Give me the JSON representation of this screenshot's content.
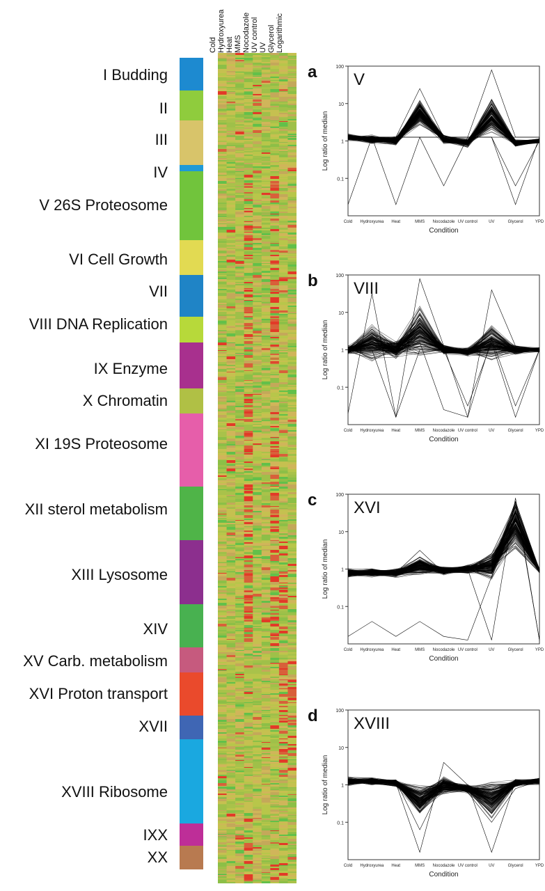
{
  "conditions": [
    "Cold",
    "Hydroxyurea",
    "Heat",
    "MMS",
    "Nocodazole",
    "UV control",
    "UV",
    "Glycerol",
    "Logarithmic"
  ],
  "clusters": [
    {
      "label": "I Budding",
      "color": "#1d8ad0"
    },
    {
      "label": "II",
      "color": "#8fcc3d"
    },
    {
      "label": "III",
      "color": "#d8c46a"
    },
    {
      "label": "IV",
      "color": "#1f9ad6"
    },
    {
      "label": "V 26S Proteosome",
      "color": "#71c43c"
    },
    {
      "label": "VI Cell Growth",
      "color": "#e2da52"
    },
    {
      "label": "VII",
      "color": "#1f84c6"
    },
    {
      "label": "VIII DNA Replication",
      "color": "#b7d93a"
    },
    {
      "label": "IX Enzyme",
      "color": "#a8308e"
    },
    {
      "label": "X Chromatin",
      "color": "#b0c045"
    },
    {
      "label": "XI 19S Proteosome",
      "color": "#e65eaa"
    },
    {
      "label": "XII sterol metabolism",
      "color": "#4fb448"
    },
    {
      "label": "XIII Lysosome",
      "color": "#8c2f8e"
    },
    {
      "label": "XIV",
      "color": "#48b150"
    },
    {
      "label": "XV Carb. metabolism",
      "color": "#c65a7e"
    },
    {
      "label": "XVI Proton transport",
      "color": "#ea4a2c"
    },
    {
      "label": "XVII",
      "color": "#3f66b4"
    },
    {
      "label": "XVIII Ribosome",
      "color": "#1aa8e0"
    },
    {
      "label": "IXX",
      "color": "#be2e98"
    },
    {
      "label": "XX",
      "color": "#b87a50"
    }
  ],
  "panels": [
    {
      "letter": "a",
      "cluster": "V",
      "ylabel": "Log ratio of median",
      "xlabel": "Condition",
      "x_ticks": [
        "Cold",
        "Hydroxyurea",
        "Heat",
        "MMS",
        "Nocodazole",
        "UV control",
        "UV",
        "Glycerol",
        "YPD"
      ],
      "y_ticks": [
        "100",
        "10",
        "1",
        "0.1"
      ]
    },
    {
      "letter": "b",
      "cluster": "VIII",
      "ylabel": "Log ratio of median",
      "xlabel": "Condition",
      "x_ticks": [
        "Cold",
        "Hydroxyurea",
        "Heat",
        "MMS",
        "Nocodazole",
        "UV control",
        "UV",
        "Glycerol",
        "YPD"
      ],
      "y_ticks": [
        "100",
        "10",
        "1",
        "0.1"
      ]
    },
    {
      "letter": "c",
      "cluster": "XVI",
      "ylabel": "Log ratio of median",
      "xlabel": "Condition",
      "x_ticks": [
        "Cold",
        "Hydroxyurea",
        "Heat",
        "MMS",
        "Nocodazole",
        "UV control",
        "UV",
        "Glycerol",
        "YPD"
      ],
      "y_ticks": [
        "100",
        "10",
        "1",
        "0.1"
      ]
    },
    {
      "letter": "d",
      "cluster": "XVIII",
      "ylabel": "Log ratio of median",
      "xlabel": "Condition",
      "x_ticks": [
        "Cold",
        "Hydroxyurea",
        "Heat",
        "MMS",
        "Nocodazole",
        "UV control",
        "UV",
        "Glycerol",
        "YPD"
      ],
      "y_ticks": [
        "100",
        "10",
        "1",
        "0.1"
      ]
    }
  ]
}
